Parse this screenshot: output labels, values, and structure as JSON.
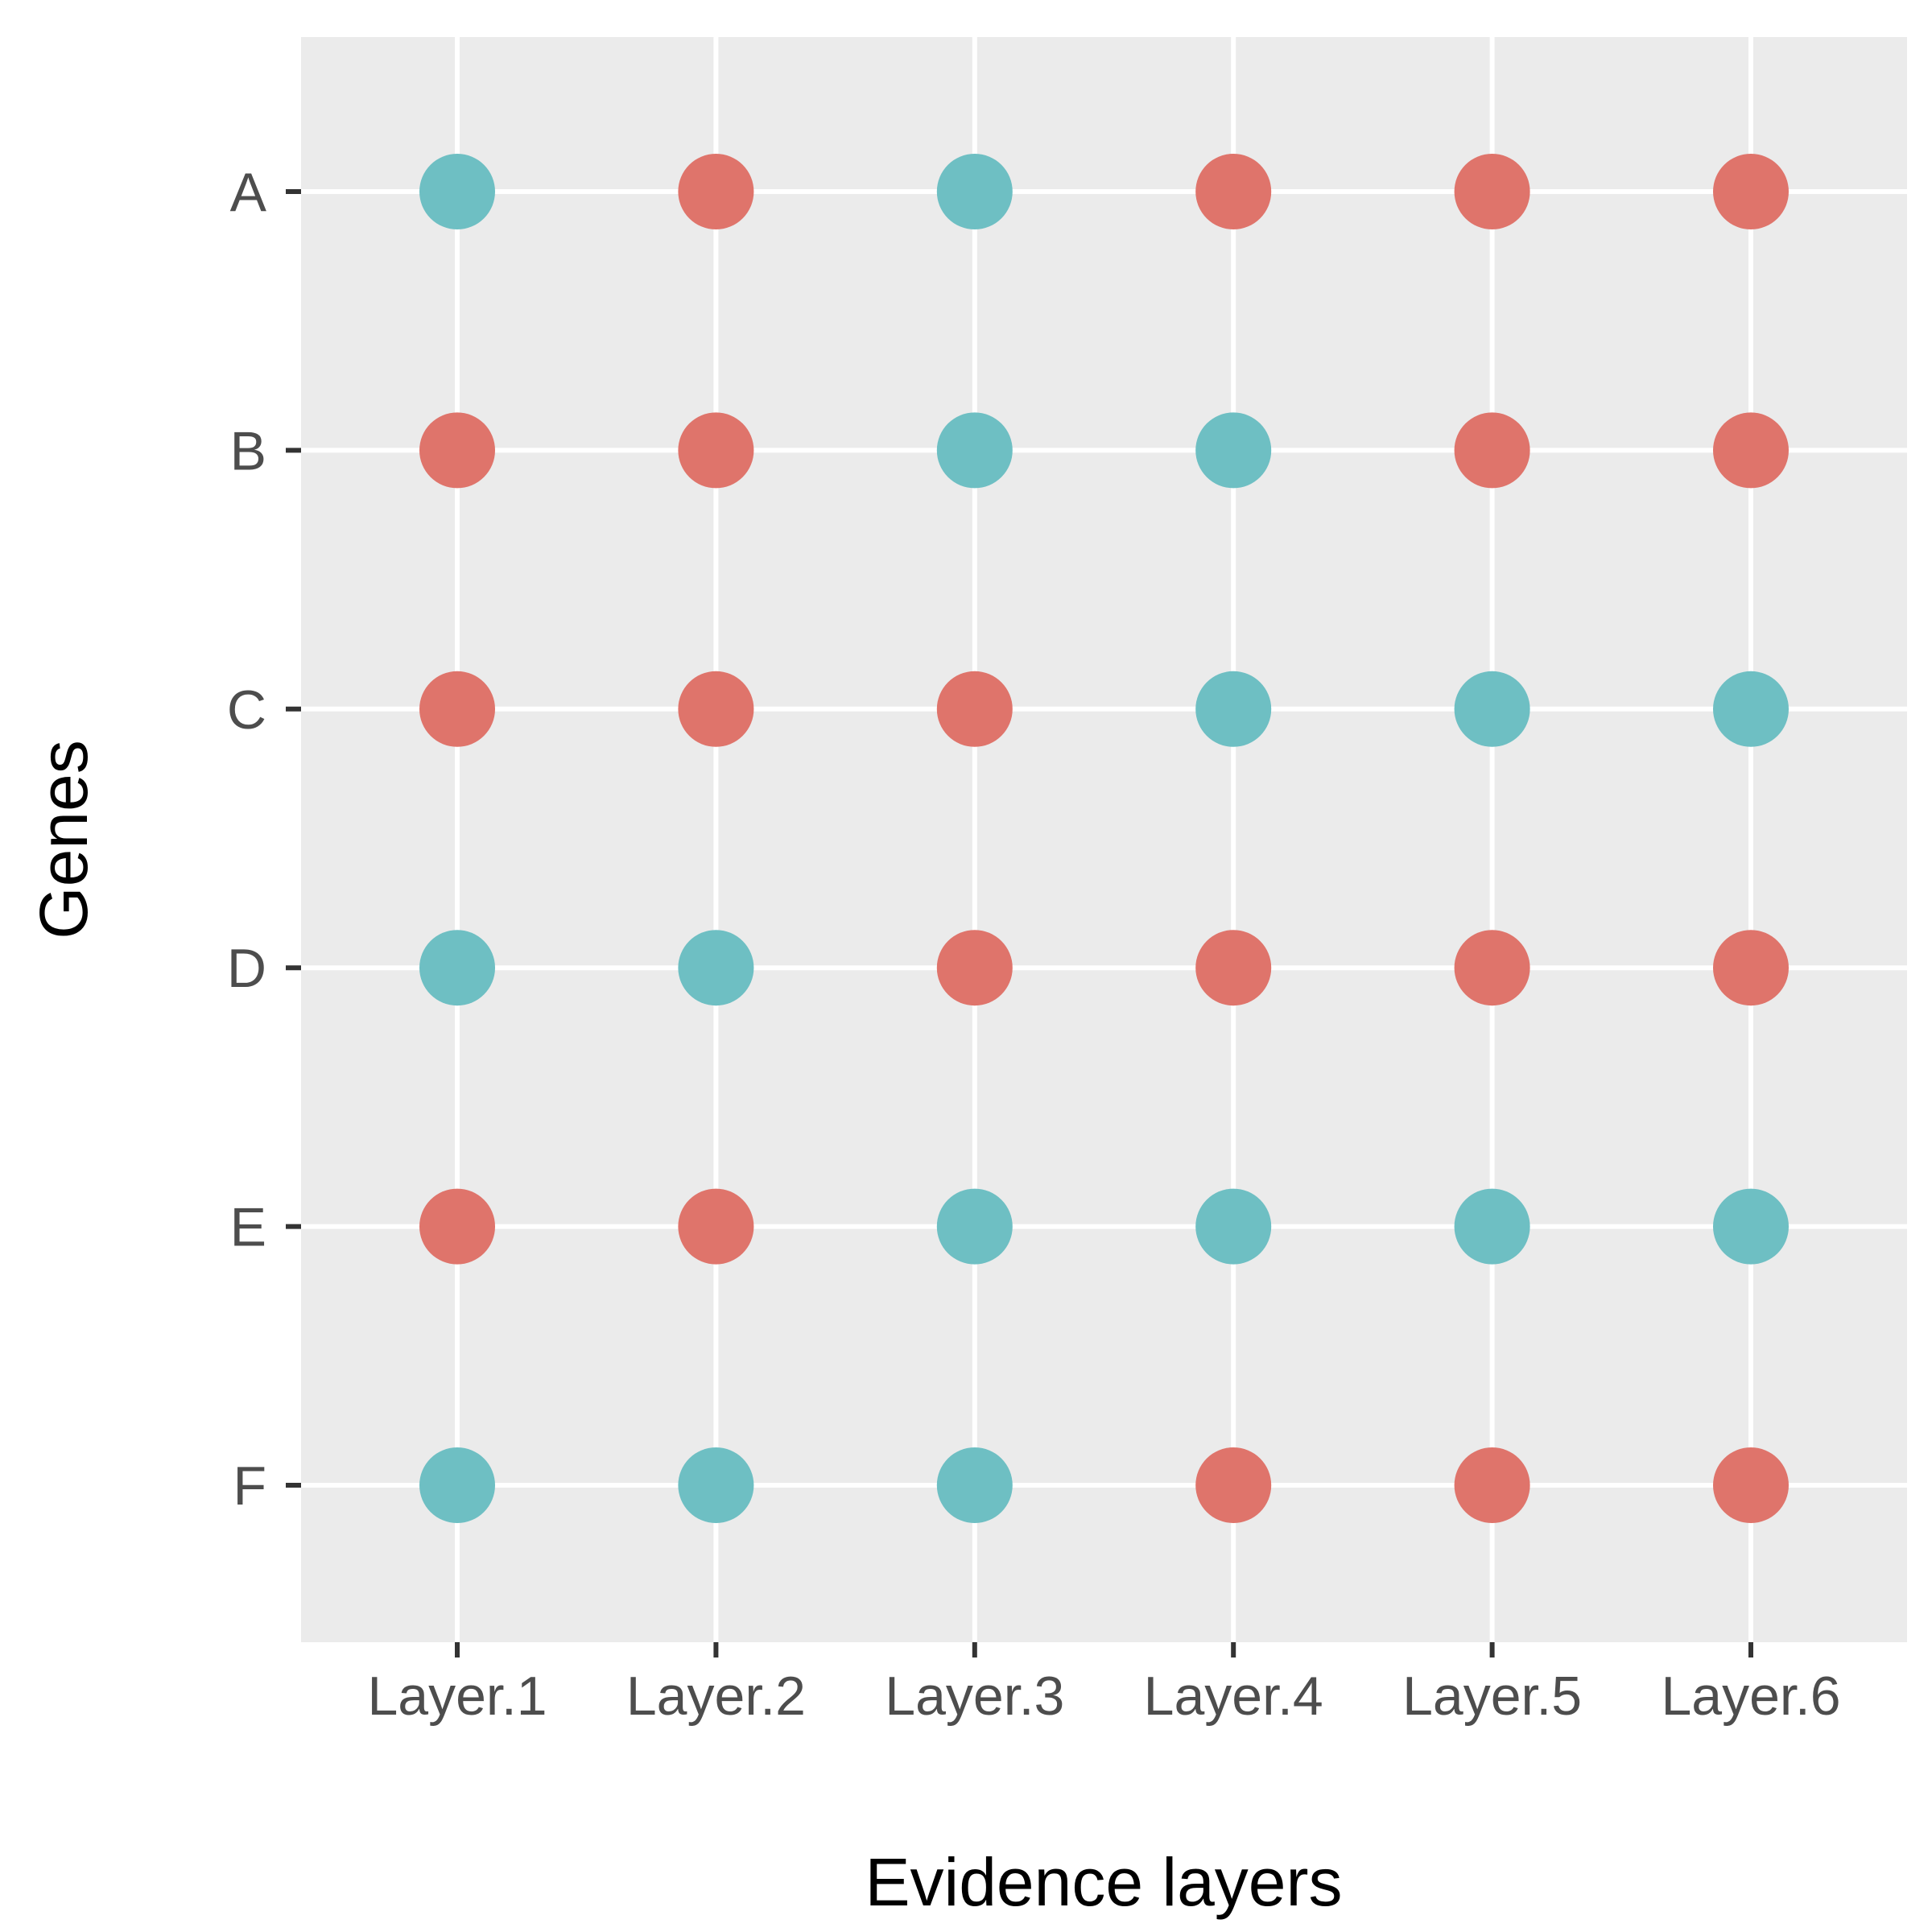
{
  "chart_data": {
    "type": "scatter",
    "title": "",
    "xlabel": "Evidence layers",
    "ylabel": "Genes",
    "x_categories": [
      "Layer.1",
      "Layer.2",
      "Layer.3",
      "Layer.4",
      "Layer.5",
      "Layer.6"
    ],
    "y_categories": [
      "A",
      "B",
      "C",
      "D",
      "E",
      "F"
    ],
    "grid": true,
    "legend": "none",
    "colors": {
      "red": "#DF746B",
      "teal": "#6EBFC3",
      "panel": "#EBEBEB",
      "gridline": "#FFFFFF",
      "tick": "#333333"
    },
    "points": [
      {
        "gene": "A",
        "layer": "Layer.1",
        "color": "teal"
      },
      {
        "gene": "A",
        "layer": "Layer.2",
        "color": "red"
      },
      {
        "gene": "A",
        "layer": "Layer.3",
        "color": "teal"
      },
      {
        "gene": "A",
        "layer": "Layer.4",
        "color": "red"
      },
      {
        "gene": "A",
        "layer": "Layer.5",
        "color": "red"
      },
      {
        "gene": "A",
        "layer": "Layer.6",
        "color": "red"
      },
      {
        "gene": "B",
        "layer": "Layer.1",
        "color": "red"
      },
      {
        "gene": "B",
        "layer": "Layer.2",
        "color": "red"
      },
      {
        "gene": "B",
        "layer": "Layer.3",
        "color": "teal"
      },
      {
        "gene": "B",
        "layer": "Layer.4",
        "color": "teal"
      },
      {
        "gene": "B",
        "layer": "Layer.5",
        "color": "red"
      },
      {
        "gene": "B",
        "layer": "Layer.6",
        "color": "red"
      },
      {
        "gene": "C",
        "layer": "Layer.1",
        "color": "red"
      },
      {
        "gene": "C",
        "layer": "Layer.2",
        "color": "red"
      },
      {
        "gene": "C",
        "layer": "Layer.3",
        "color": "red"
      },
      {
        "gene": "C",
        "layer": "Layer.4",
        "color": "teal"
      },
      {
        "gene": "C",
        "layer": "Layer.5",
        "color": "teal"
      },
      {
        "gene": "C",
        "layer": "Layer.6",
        "color": "teal"
      },
      {
        "gene": "D",
        "layer": "Layer.1",
        "color": "teal"
      },
      {
        "gene": "D",
        "layer": "Layer.2",
        "color": "teal"
      },
      {
        "gene": "D",
        "layer": "Layer.3",
        "color": "red"
      },
      {
        "gene": "D",
        "layer": "Layer.4",
        "color": "red"
      },
      {
        "gene": "D",
        "layer": "Layer.5",
        "color": "red"
      },
      {
        "gene": "D",
        "layer": "Layer.6",
        "color": "red"
      },
      {
        "gene": "E",
        "layer": "Layer.1",
        "color": "red"
      },
      {
        "gene": "E",
        "layer": "Layer.2",
        "color": "red"
      },
      {
        "gene": "E",
        "layer": "Layer.3",
        "color": "teal"
      },
      {
        "gene": "E",
        "layer": "Layer.4",
        "color": "teal"
      },
      {
        "gene": "E",
        "layer": "Layer.5",
        "color": "teal"
      },
      {
        "gene": "E",
        "layer": "Layer.6",
        "color": "teal"
      },
      {
        "gene": "F",
        "layer": "Layer.1",
        "color": "teal"
      },
      {
        "gene": "F",
        "layer": "Layer.2",
        "color": "teal"
      },
      {
        "gene": "F",
        "layer": "Layer.3",
        "color": "teal"
      },
      {
        "gene": "F",
        "layer": "Layer.4",
        "color": "red"
      },
      {
        "gene": "F",
        "layer": "Layer.5",
        "color": "red"
      },
      {
        "gene": "F",
        "layer": "Layer.6",
        "color": "red"
      }
    ]
  }
}
